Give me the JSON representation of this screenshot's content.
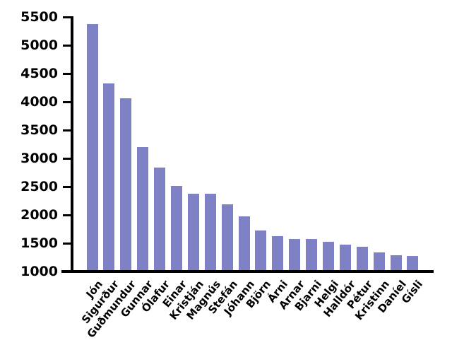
{
  "figure": {
    "background": "#ffffff",
    "title": ""
  },
  "chart_data": {
    "type": "bar",
    "title": "",
    "xlabel": "",
    "ylabel": "",
    "categories": [
      "Jón",
      "Sigurður",
      "Guðmundur",
      "Gunnar",
      "Ólafur",
      "Einar",
      "Kristján",
      "Magnús",
      "Stefán",
      "Jóhann",
      "Björn",
      "Árni",
      "Arnar",
      "Bjarni",
      "Helgi",
      "Halldór",
      "Pétur",
      "Kristinn",
      "Daníel",
      "Gísli"
    ],
    "values": [
      5370,
      4330,
      4060,
      3200,
      2840,
      2510,
      2380,
      2370,
      2190,
      1970,
      1720,
      1630,
      1580,
      1570,
      1530,
      1480,
      1440,
      1340,
      1290,
      1280
    ],
    "ylim": [
      1000,
      5500
    ],
    "ytick_interval": 500,
    "ytick_labels": [
      "1000",
      "1500",
      "2000",
      "2500",
      "3000",
      "3500",
      "4000",
      "4500",
      "5000",
      "5500"
    ],
    "grid": false,
    "legend": null,
    "bar_color": "#7e81c3",
    "axis_color": "#000000",
    "tick_label_color": "#000000",
    "x_label_rotation_deg": 51
  }
}
